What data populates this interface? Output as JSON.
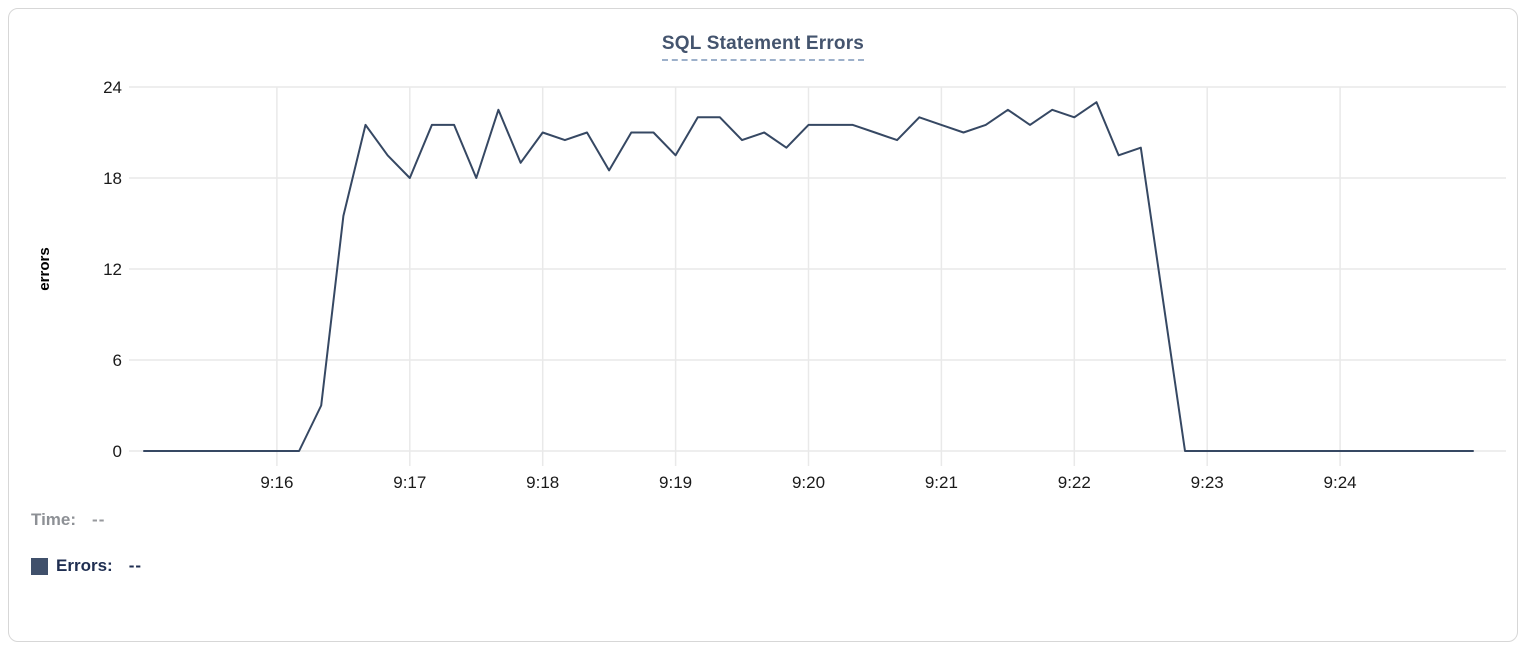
{
  "chart_data": {
    "type": "line",
    "title": "SQL Statement Errors",
    "xlabel": "",
    "ylabel": "errors",
    "ylim": [
      0,
      24
    ],
    "yticks": [
      0,
      6,
      12,
      18,
      24
    ],
    "x_tick_labels": [
      "9:16",
      "9:17",
      "9:18",
      "9:19",
      "9:20",
      "9:21",
      "9:22",
      "9:23",
      "9:24"
    ],
    "x_range": [
      "9:15:00",
      "9:25:00"
    ],
    "interval_seconds": 10,
    "grid": true,
    "legend_position": "bottom-left",
    "tick_color": "#1a1a1a",
    "grid_color": "#e9e9e9",
    "series": [
      {
        "name": "Errors",
        "color": "#364863",
        "times": [
          "9:15:00",
          "9:15:10",
          "9:15:20",
          "9:15:30",
          "9:15:40",
          "9:15:50",
          "9:16:00",
          "9:16:10",
          "9:16:20",
          "9:16:30",
          "9:16:40",
          "9:16:50",
          "9:17:00",
          "9:17:10",
          "9:17:20",
          "9:17:30",
          "9:17:40",
          "9:17:50",
          "9:18:00",
          "9:18:10",
          "9:18:20",
          "9:18:30",
          "9:18:40",
          "9:18:50",
          "9:19:00",
          "9:19:10",
          "9:19:20",
          "9:19:30",
          "9:19:40",
          "9:19:50",
          "9:20:00",
          "9:20:10",
          "9:20:20",
          "9:20:30",
          "9:20:40",
          "9:20:50",
          "9:21:00",
          "9:21:10",
          "9:21:20",
          "9:21:30",
          "9:21:40",
          "9:21:50",
          "9:22:00",
          "9:22:10",
          "9:22:20",
          "9:22:30",
          "9:22:40",
          "9:22:50",
          "9:23:00",
          "9:23:10",
          "9:23:20",
          "9:23:30",
          "9:23:40",
          "9:23:50",
          "9:24:00",
          "9:24:10",
          "9:24:20",
          "9:24:30",
          "9:24:40",
          "9:24:50",
          "9:25:00"
        ],
        "values": [
          0,
          0,
          0,
          0,
          0,
          0,
          0,
          0,
          3,
          15.5,
          21.5,
          19.5,
          18,
          21.5,
          21.5,
          18,
          22.5,
          19,
          21,
          20.5,
          21,
          18.5,
          21,
          21,
          19.5,
          22,
          22,
          20.5,
          21,
          20,
          21.5,
          21.5,
          21.5,
          21,
          20.5,
          22,
          21.5,
          21,
          21.5,
          22.5,
          21.5,
          22.5,
          22,
          23,
          19.5,
          20,
          10,
          0,
          0,
          0,
          0,
          0,
          0,
          0,
          0,
          0,
          0,
          0,
          0,
          0,
          0
        ]
      }
    ]
  },
  "legend": {
    "time_label": "Time:",
    "time_value": "--",
    "series_label": "Errors:",
    "series_value": "--",
    "swatch_color": "#40506b"
  }
}
